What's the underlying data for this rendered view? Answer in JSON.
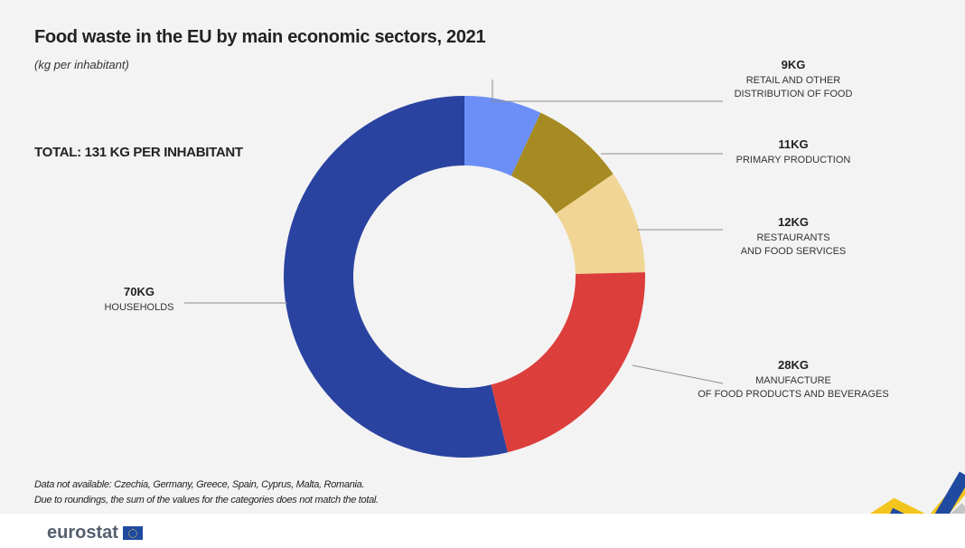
{
  "header": {
    "title": "Food waste in the EU by main economic sectors, 2021",
    "subtitle": "(kg per inhabitant)",
    "total": "TOTAL: 131 KG PER INHABITANT"
  },
  "notes": {
    "line1": "Data not available:  Czechia, Germany, Greece, Spain, Cyprus, Malta, Romania.",
    "line2": "Due to roundings, the sum of the values for the categories does not match the total."
  },
  "footer": {
    "logo_text": "eurostat"
  },
  "colors": {
    "retail": "#6b8ff7",
    "primary": "#a68a22",
    "restaurants": "#f0d595",
    "manufacture": "#dc3e3c",
    "households": "#2a43a0"
  },
  "chart_data": {
    "type": "pie",
    "donut": true,
    "total": 131,
    "unit": "kg per inhabitant",
    "slices": [
      {
        "value_label": "9KG",
        "value": 9,
        "label_lines": [
          "RETAIL AND OTHER",
          "DISTRIBUTION OF FOOD"
        ],
        "color": "#6b8ff7"
      },
      {
        "value_label": "11KG",
        "value": 11,
        "label_lines": [
          "PRIMARY PRODUCTION"
        ],
        "color": "#a68a22"
      },
      {
        "value_label": "12KG",
        "value": 12,
        "label_lines": [
          "RESTAURANTS",
          "AND FOOD SERVICES"
        ],
        "color": "#f0d595"
      },
      {
        "value_label": "28KG",
        "value": 28,
        "label_lines": [
          "MANUFACTURE",
          "OF FOOD PRODUCTS AND BEVERAGES"
        ],
        "color": "#dc3e3c"
      },
      {
        "value_label": "70KG",
        "value": 70,
        "label_lines": [
          "HOUSEHOLDS"
        ],
        "color": "#2a43a0"
      }
    ]
  }
}
